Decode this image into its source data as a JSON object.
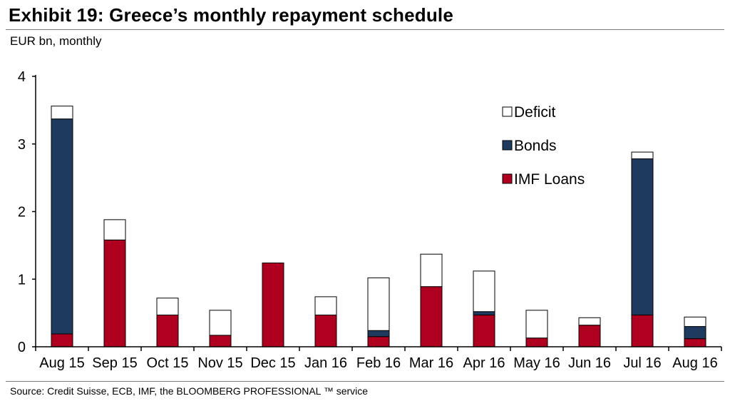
{
  "header": {
    "title": "Exhibit 19: Greece’s monthly repayment schedule",
    "subtitle": "EUR bn, monthly"
  },
  "footer": {
    "source": "Source: Credit Suisse, ECB, IMF, the BLOOMBERG PROFESSIONAL ™ service"
  },
  "chart_data": {
    "type": "bar",
    "stacked": true,
    "title": "Exhibit 19: Greece’s monthly repayment schedule",
    "ylabel": "EUR bn, monthly",
    "xlabel": "",
    "ylim": [
      0,
      4
    ],
    "yticks": [
      0,
      1,
      2,
      3,
      4
    ],
    "grid": false,
    "legend_position": "top-right",
    "categories": [
      "Aug 15",
      "Sep 15",
      "Oct 15",
      "Nov 15",
      "Dec 15",
      "Jan 16",
      "Feb 16",
      "Mar 16",
      "Apr 16",
      "May 16",
      "Jun 16",
      "Jul 16",
      "Aug 16"
    ],
    "series": [
      {
        "name": "IMF Loans",
        "color": "#b00020",
        "values": [
          0.19,
          1.58,
          0.47,
          0.17,
          1.24,
          0.47,
          0.15,
          0.89,
          0.47,
          0.13,
          0.32,
          0.47,
          0.12
        ]
      },
      {
        "name": "Bonds",
        "color": "#1f3a5f",
        "values": [
          3.18,
          0,
          0,
          0,
          0,
          0,
          0.09,
          0,
          0.05,
          0,
          0,
          2.31,
          0.18
        ]
      },
      {
        "name": "Deficit",
        "color": "#ffffff",
        "values": [
          0.19,
          0.3,
          0.25,
          0.37,
          0,
          0.27,
          0.78,
          0.48,
          0.6,
          0.41,
          0.11,
          0.1,
          0.14
        ]
      }
    ],
    "legend_order": [
      "Deficit",
      "Bonds",
      "IMF Loans"
    ]
  }
}
